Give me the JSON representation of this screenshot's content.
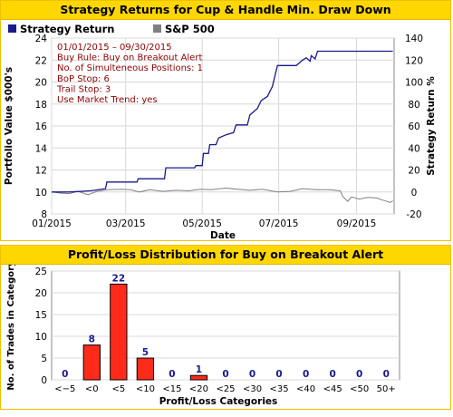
{
  "top_panel": {
    "title": "Strategy Returns for Cup & Handle Min. Draw Down",
    "legend": [
      {
        "label": "Strategy Return",
        "color": "#1a1a8c"
      },
      {
        "label": "S&P 500",
        "color": "#808080"
      }
    ],
    "info_lines": [
      "01/01/2015 – 09/30/2015",
      "Buy Rule: Buy on Breakout Alert",
      "No. of Simulteneous Positions: 1",
      "BoP Stop: 6",
      "Trail Stop: 3",
      "Use Market Trend: yes"
    ],
    "info_color": "#8b0000"
  },
  "bottom_panel": {
    "title": "Profit/Loss Distribution for Buy on Breakout Alert"
  },
  "chart_data": [
    {
      "type": "line",
      "xlabel": "Date",
      "ylabel": "Portfolio Value $000's",
      "y2label": "Strategy Return %",
      "x_ticks": [
        "01/2015",
        "03/2015",
        "05/2015",
        "07/2015",
        "09/2015"
      ],
      "ylim": [
        8,
        24
      ],
      "y_ticks": [
        "8",
        "10",
        "12",
        "14",
        "16",
        "18",
        "20",
        "22",
        "24"
      ],
      "y2lim": [
        -20,
        140
      ],
      "y2_ticks": [
        "-20",
        "0",
        "20",
        "40",
        "60",
        "80",
        "100",
        "120",
        "140"
      ],
      "grid": true,
      "series": [
        {
          "name": "Strategy Return",
          "color": "#1a1a8c",
          "points": [
            [
              "2015-01-01",
              10.0
            ],
            [
              "2015-01-15",
              10.0
            ],
            [
              "2015-02-01",
              10.1
            ],
            [
              "2015-02-13",
              10.3
            ],
            [
              "2015-02-14",
              10.9
            ],
            [
              "2015-03-10",
              10.9
            ],
            [
              "2015-03-11",
              11.2
            ],
            [
              "2015-03-25",
              11.2
            ],
            [
              "2015-04-01",
              11.2
            ],
            [
              "2015-04-02",
              12.2
            ],
            [
              "2015-04-25",
              12.2
            ],
            [
              "2015-04-26",
              12.4
            ],
            [
              "2015-05-01",
              12.4
            ],
            [
              "2015-05-02",
              13.5
            ],
            [
              "2015-05-06",
              13.5
            ],
            [
              "2015-05-07",
              14.3
            ],
            [
              "2015-05-12",
              14.3
            ],
            [
              "2015-05-14",
              14.9
            ],
            [
              "2015-05-20",
              15.2
            ],
            [
              "2015-05-26",
              15.4
            ],
            [
              "2015-05-28",
              16.1
            ],
            [
              "2015-06-06",
              16.1
            ],
            [
              "2015-06-08",
              17.0
            ],
            [
              "2015-06-14",
              17.6
            ],
            [
              "2015-06-17",
              18.3
            ],
            [
              "2015-06-22",
              18.7
            ],
            [
              "2015-06-26",
              19.6
            ],
            [
              "2015-06-30",
              21.5
            ],
            [
              "2015-07-05",
              21.5
            ],
            [
              "2015-07-15",
              21.5
            ],
            [
              "2015-07-18",
              21.8
            ],
            [
              "2015-07-20",
              22.0
            ],
            [
              "2015-07-23",
              22.2
            ],
            [
              "2015-07-26",
              21.9
            ],
            [
              "2015-07-27",
              22.4
            ],
            [
              "2015-07-30",
              22.1
            ],
            [
              "2015-08-01",
              22.8
            ],
            [
              "2015-08-15",
              22.8
            ],
            [
              "2015-09-01",
              22.8
            ],
            [
              "2015-09-30",
              22.8
            ]
          ]
        },
        {
          "name": "S&P 500",
          "color": "#808080",
          "points": [
            [
              "2015-01-01",
              10.0
            ],
            [
              "2015-01-08",
              9.9
            ],
            [
              "2015-01-15",
              9.85
            ],
            [
              "2015-01-22",
              10.05
            ],
            [
              "2015-01-30",
              9.75
            ],
            [
              "2015-02-06",
              10.05
            ],
            [
              "2015-02-15",
              10.2
            ],
            [
              "2015-02-25",
              10.25
            ],
            [
              "2015-03-05",
              10.2
            ],
            [
              "2015-03-12",
              10.0
            ],
            [
              "2015-03-20",
              10.2
            ],
            [
              "2015-03-31",
              10.05
            ],
            [
              "2015-04-10",
              10.15
            ],
            [
              "2015-04-20",
              10.1
            ],
            [
              "2015-04-30",
              10.25
            ],
            [
              "2015-05-08",
              10.2
            ],
            [
              "2015-05-20",
              10.35
            ],
            [
              "2015-05-29",
              10.25
            ],
            [
              "2015-06-08",
              10.15
            ],
            [
              "2015-06-18",
              10.25
            ],
            [
              "2015-06-30",
              10.0
            ],
            [
              "2015-07-10",
              10.05
            ],
            [
              "2015-07-20",
              10.3
            ],
            [
              "2015-07-31",
              10.2
            ],
            [
              "2015-08-10",
              10.2
            ],
            [
              "2015-08-19",
              10.1
            ],
            [
              "2015-08-21",
              9.6
            ],
            [
              "2015-08-25",
              9.15
            ],
            [
              "2015-08-28",
              9.55
            ],
            [
              "2015-09-03",
              9.35
            ],
            [
              "2015-09-10",
              9.5
            ],
            [
              "2015-09-17",
              9.45
            ],
            [
              "2015-09-22",
              9.25
            ],
            [
              "2015-09-28",
              9.05
            ],
            [
              "2015-09-30",
              9.2
            ]
          ]
        }
      ]
    },
    {
      "type": "bar",
      "xlabel": "Profit/Loss Categories",
      "ylabel": "No. of Trades in Category",
      "categories": [
        "<−5",
        "<0",
        "<5",
        "<10",
        "<15",
        "<20",
        "<25",
        "<30",
        "<35",
        "<40",
        "<45",
        "<50",
        "50+"
      ],
      "values": [
        0,
        8,
        22,
        5,
        0,
        1,
        0,
        0,
        0,
        0,
        0,
        0,
        0
      ],
      "ylim": [
        0,
        25
      ],
      "y_ticks": [
        "0",
        "5",
        "10",
        "15",
        "20",
        "25"
      ],
      "bar_color": "#ff2a1a",
      "label_color": "#1a1a8c",
      "grid": true
    }
  ]
}
